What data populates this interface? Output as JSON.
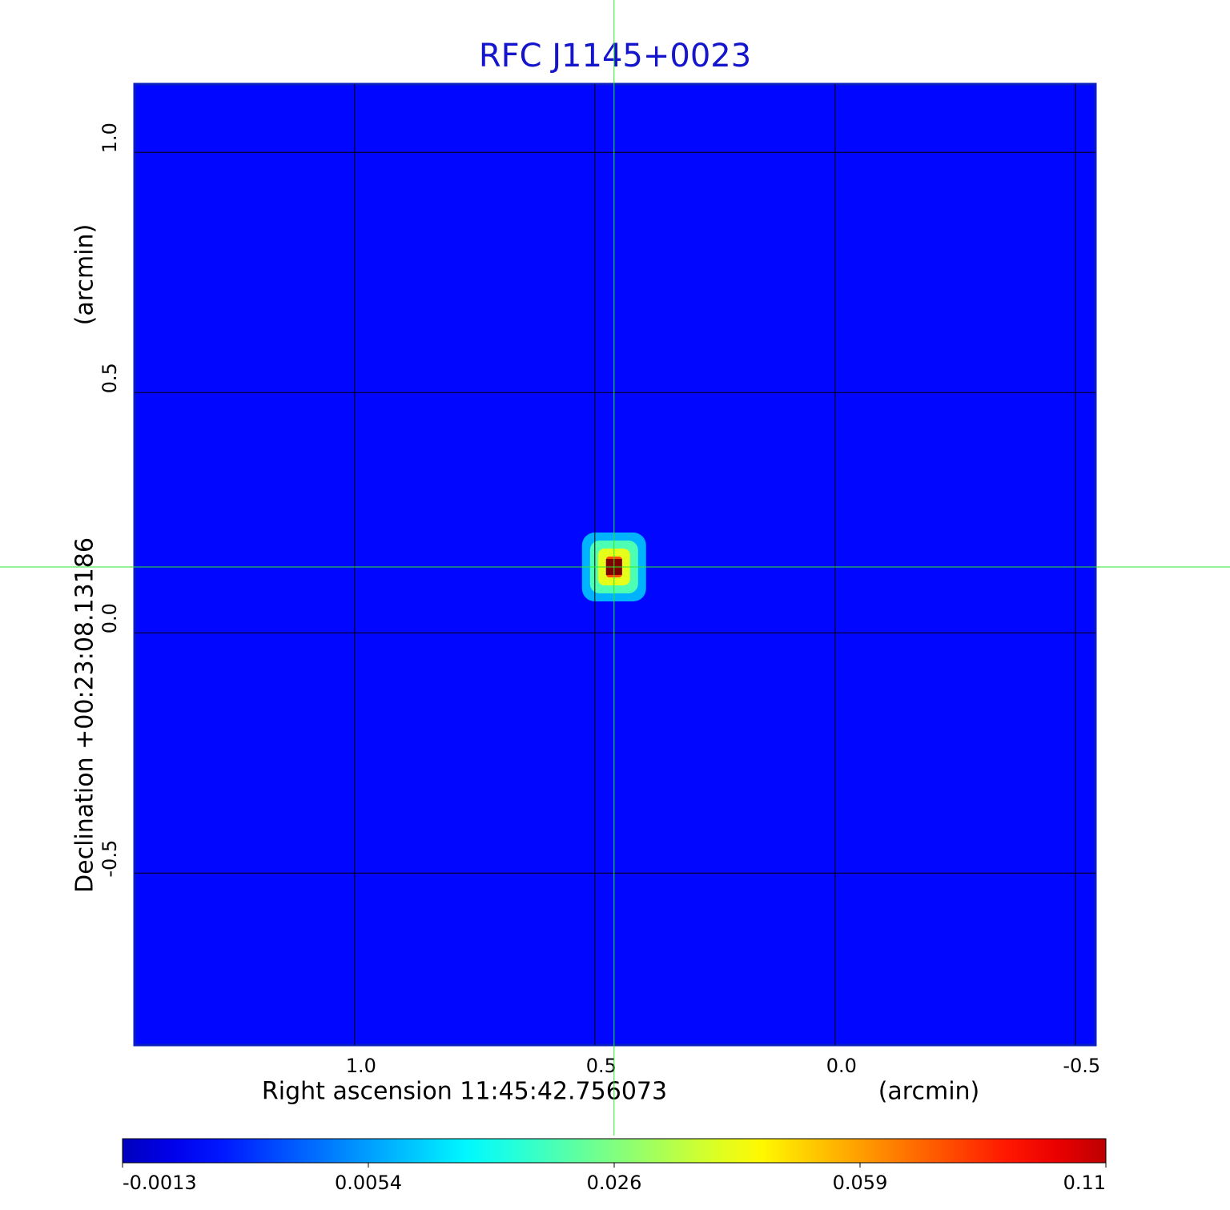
{
  "chart_data": {
    "type": "image",
    "title": "RFC J1145+0023",
    "xlabel": "Right ascension  11:45:42.756073",
    "xlabel_unit": "(arcmin)",
    "ylabel": "Declination  +00:23:08.13186",
    "ylabel_unit": "(arcmin)",
    "xlim": [
      1.458,
      -0.542
    ],
    "ylim": [
      -0.858,
      1.142
    ],
    "xticks": [
      {
        "value": 1,
        "label": "1.0"
      },
      0.5,
      {
        "value": 0,
        "label": "0.0"
      },
      -0.5
    ],
    "yticks": [
      {
        "value": 1,
        "label": "1.0"
      },
      0.5,
      {
        "value": 0,
        "label": "0.0"
      },
      -0.5
    ],
    "grid": true,
    "colormap": "jet",
    "background_value": 0.002,
    "peak": {
      "x": 0.46,
      "y": 0.137,
      "value": 0.11
    },
    "crosshair": {
      "x": 0.46,
      "y": 0.137,
      "color": "#2ee82e"
    },
    "colorbar": {
      "lim": [
        -0.0013,
        0.11
      ],
      "ticks": [
        -0.0013,
        0.0054,
        0.026,
        0.059,
        0.11
      ]
    }
  }
}
